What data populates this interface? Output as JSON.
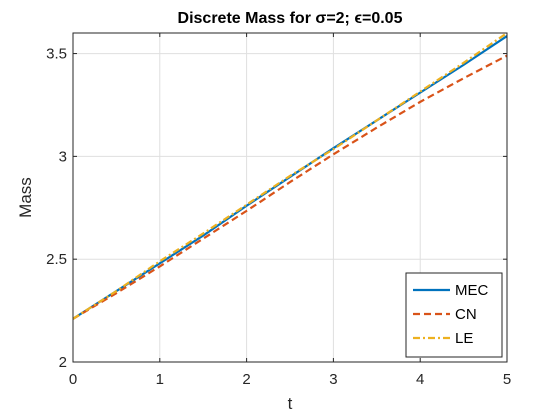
{
  "chart_data": {
    "type": "line",
    "title": "Discrete Mass for σ=2; ϵ=0.05",
    "xlabel": "t",
    "ylabel": "Mass",
    "xlim": [
      0,
      5
    ],
    "ylim": [
      2,
      3.6
    ],
    "xticks": [
      "0",
      "1",
      "2",
      "3",
      "4",
      "5"
    ],
    "yticks": [
      "2",
      "2.5",
      "3",
      "3.5"
    ],
    "grid": true,
    "legend_position": "bottom-right",
    "series": [
      {
        "name": "MEC",
        "color": "#0072BD",
        "style": "solid",
        "x": [
          0,
          0.5,
          1,
          1.5,
          2,
          2.5,
          3,
          3.5,
          4,
          4.5,
          5
        ],
        "y": [
          2.21,
          2.345,
          2.48,
          2.615,
          2.76,
          2.9,
          3.04,
          3.175,
          3.31,
          3.445,
          3.585
        ]
      },
      {
        "name": "CN",
        "color": "#D95319",
        "style": "dashed",
        "x": [
          0,
          0.5,
          1,
          1.5,
          2,
          2.5,
          3,
          3.5,
          4,
          4.5,
          5
        ],
        "y": [
          2.21,
          2.335,
          2.465,
          2.6,
          2.735,
          2.875,
          3.01,
          3.14,
          3.265,
          3.38,
          3.49
        ]
      },
      {
        "name": "LE",
        "color": "#EDB120",
        "style": "dashdot",
        "x": [
          0,
          0.5,
          1,
          1.5,
          2,
          2.5,
          3,
          3.5,
          4,
          4.5,
          5
        ],
        "y": [
          2.21,
          2.345,
          2.49,
          2.625,
          2.765,
          2.905,
          3.035,
          3.175,
          3.315,
          3.455,
          3.6
        ]
      }
    ]
  }
}
